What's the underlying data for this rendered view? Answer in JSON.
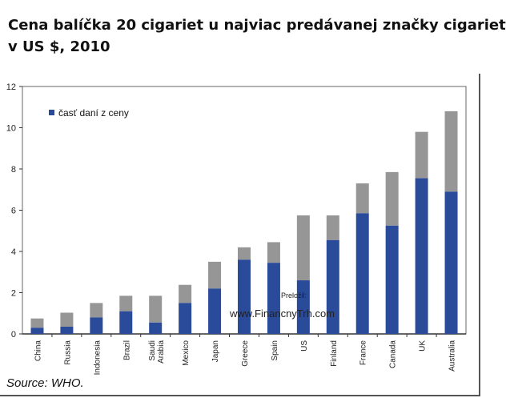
{
  "title_line1": "Cena balíčka 20 cigariet u najviac predávanej značky cigariet",
  "title_line2": "v US $, 2010",
  "source": "Source: WHO.",
  "watermark_small": "Preložil:",
  "watermark_url": "www.FinancnyTrh.com",
  "chart_data": {
    "type": "bar",
    "stacked": true,
    "categories": [
      "China",
      "Russia",
      "Indonesia",
      "Brazil",
      "Saudi Arabia",
      "Mexico",
      "Japan",
      "Greece",
      "Spain",
      "US",
      "Finland",
      "France",
      "Canada",
      "UK",
      "Australia"
    ],
    "category_lines": [
      [
        "China"
      ],
      [
        "Russia"
      ],
      [
        "Indonesia"
      ],
      [
        "Brazil"
      ],
      [
        "Saudi",
        "Arabia"
      ],
      [
        "Mexico"
      ],
      [
        "Japan"
      ],
      [
        "Greece"
      ],
      [
        "Spain"
      ],
      [
        "US"
      ],
      [
        "Finland"
      ],
      [
        "France"
      ],
      [
        "Canada"
      ],
      [
        "UK"
      ],
      [
        "Australia"
      ]
    ],
    "series": [
      {
        "name": "časť daní z ceny",
        "color": "#2a4a9a",
        "values": [
          0.3,
          0.35,
          0.8,
          1.1,
          0.55,
          1.5,
          2.2,
          3.6,
          3.45,
          2.6,
          4.55,
          5.85,
          5.25,
          7.55,
          6.9
        ]
      },
      {
        "color": "#969696",
        "values": [
          0.45,
          0.68,
          0.7,
          0.75,
          1.3,
          0.88,
          1.3,
          0.6,
          1.0,
          3.15,
          1.2,
          1.45,
          2.6,
          2.25,
          3.9
        ]
      }
    ],
    "totals": [
      0.75,
      1.03,
      1.5,
      1.85,
      1.85,
      2.38,
      3.5,
      4.2,
      4.45,
      5.75,
      5.75,
      7.3,
      7.85,
      9.8,
      10.8
    ],
    "yticks": [
      0,
      2,
      4,
      6,
      8,
      10,
      12
    ],
    "ylim": [
      0,
      12
    ],
    "grid": false,
    "legend": "top-left",
    "xlabel": "",
    "ylabel": ""
  },
  "colors": {
    "tax_share": "#2a4a9a",
    "remainder": "#969696",
    "axis": "#333333",
    "plot_border": "#666666"
  }
}
